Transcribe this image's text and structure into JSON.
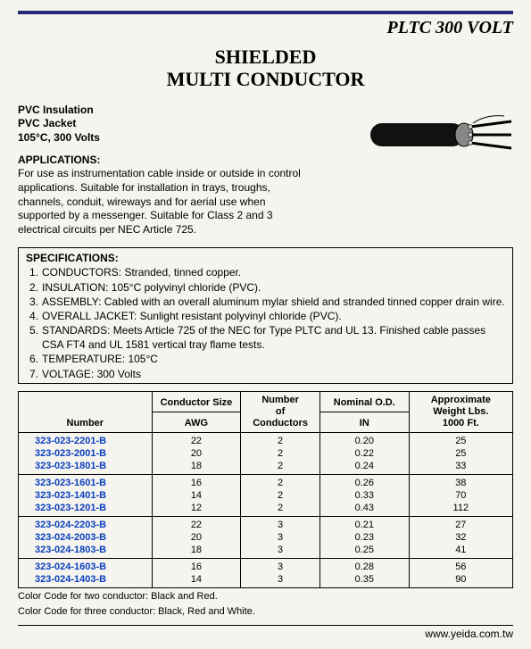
{
  "header": {
    "page_title": "PLTC 300 VOLT",
    "main_title_line1": "SHIELDED",
    "main_title_line2": "MULTI CONDUCTOR"
  },
  "subhead": {
    "l1": "PVC Insulation",
    "l2": "PVC Jacket",
    "l3": "105°C, 300 Volts"
  },
  "applications": {
    "label": "APPLICATIONS:",
    "text": "For use as instrumentation cable inside or outside in control applications. Suitable for installation in trays, troughs, channels, conduit, wireways and for aerial use when supported by a messenger. Suitable for Class 2 and 3 electrical circuits per NEC Article 725."
  },
  "specs": {
    "label": "SPECIFICATIONS:",
    "items": [
      {
        "n": "1.",
        "t": "CONDUCTORS: Stranded, tinned copper."
      },
      {
        "n": "2.",
        "t": "INSULATION: 105°C polyvinyl chloride (PVC)."
      },
      {
        "n": "3.",
        "t": "ASSEMBLY: Cabled with an overall aluminum mylar shield and stranded tinned copper drain wire."
      },
      {
        "n": "4.",
        "t": "OVERALL JACKET: Sunlight resistant polyvinyl chloride (PVC)."
      },
      {
        "n": "5.",
        "t": "STANDARDS: Meets Article 725 of the NEC for Type PLTC and UL 13. Finished cable passes CSA FT4 and UL 1581 vertical tray flame tests."
      },
      {
        "n": "6.",
        "t": "TEMPERATURE: 105°C"
      },
      {
        "n": "7.",
        "t": "VOLTAGE: 300 Volts"
      }
    ]
  },
  "table": {
    "columns": {
      "c1": "Number",
      "c2a": "Conductor Size",
      "c2b": "AWG",
      "c3a": "Number",
      "c3b": "of",
      "c3c": "Conductors",
      "c4a": "Nominal O.D.",
      "c4b": "IN",
      "c5a": "Approximate",
      "c5b": "Weight Lbs.",
      "c5c": "1000 Ft."
    },
    "groups": [
      [
        {
          "num": "323-023-2201-B",
          "awg": "22",
          "cond": "2",
          "od": "0.20",
          "wt": "25"
        },
        {
          "num": "323-023-2001-B",
          "awg": "20",
          "cond": "2",
          "od": "0.22",
          "wt": "25"
        },
        {
          "num": "323-023-1801-B",
          "awg": "18",
          "cond": "2",
          "od": "0.24",
          "wt": "33"
        }
      ],
      [
        {
          "num": "323-023-1601-B",
          "awg": "16",
          "cond": "2",
          "od": "0.26",
          "wt": "38"
        },
        {
          "num": "323-023-1401-B",
          "awg": "14",
          "cond": "2",
          "od": "0.33",
          "wt": "70"
        },
        {
          "num": "323-023-1201-B",
          "awg": "12",
          "cond": "2",
          "od": "0.43",
          "wt": "112"
        }
      ],
      [
        {
          "num": "323-024-2203-B",
          "awg": "22",
          "cond": "3",
          "od": "0.21",
          "wt": "27"
        },
        {
          "num": "323-024-2003-B",
          "awg": "20",
          "cond": "3",
          "od": "0.23",
          "wt": "32"
        },
        {
          "num": "323-024-1803-B",
          "awg": "18",
          "cond": "3",
          "od": "0.25",
          "wt": "41"
        }
      ],
      [
        {
          "num": "323-024-1603-B",
          "awg": "16",
          "cond": "3",
          "od": "0.28",
          "wt": "56"
        },
        {
          "num": "323-024-1403-B",
          "awg": "14",
          "cond": "3",
          "od": "0.35",
          "wt": "90"
        }
      ]
    ]
  },
  "footnotes": {
    "f1": "Color Code for two conductor: Black and Red.",
    "f2": "Color Code for three conductor: Black, Red and White."
  },
  "footer": {
    "url": "www.yeida.com.tw"
  },
  "colors": {
    "rule": "#2a2a7a",
    "link": "#0a3fbf",
    "bg": "#f5f4ee"
  }
}
